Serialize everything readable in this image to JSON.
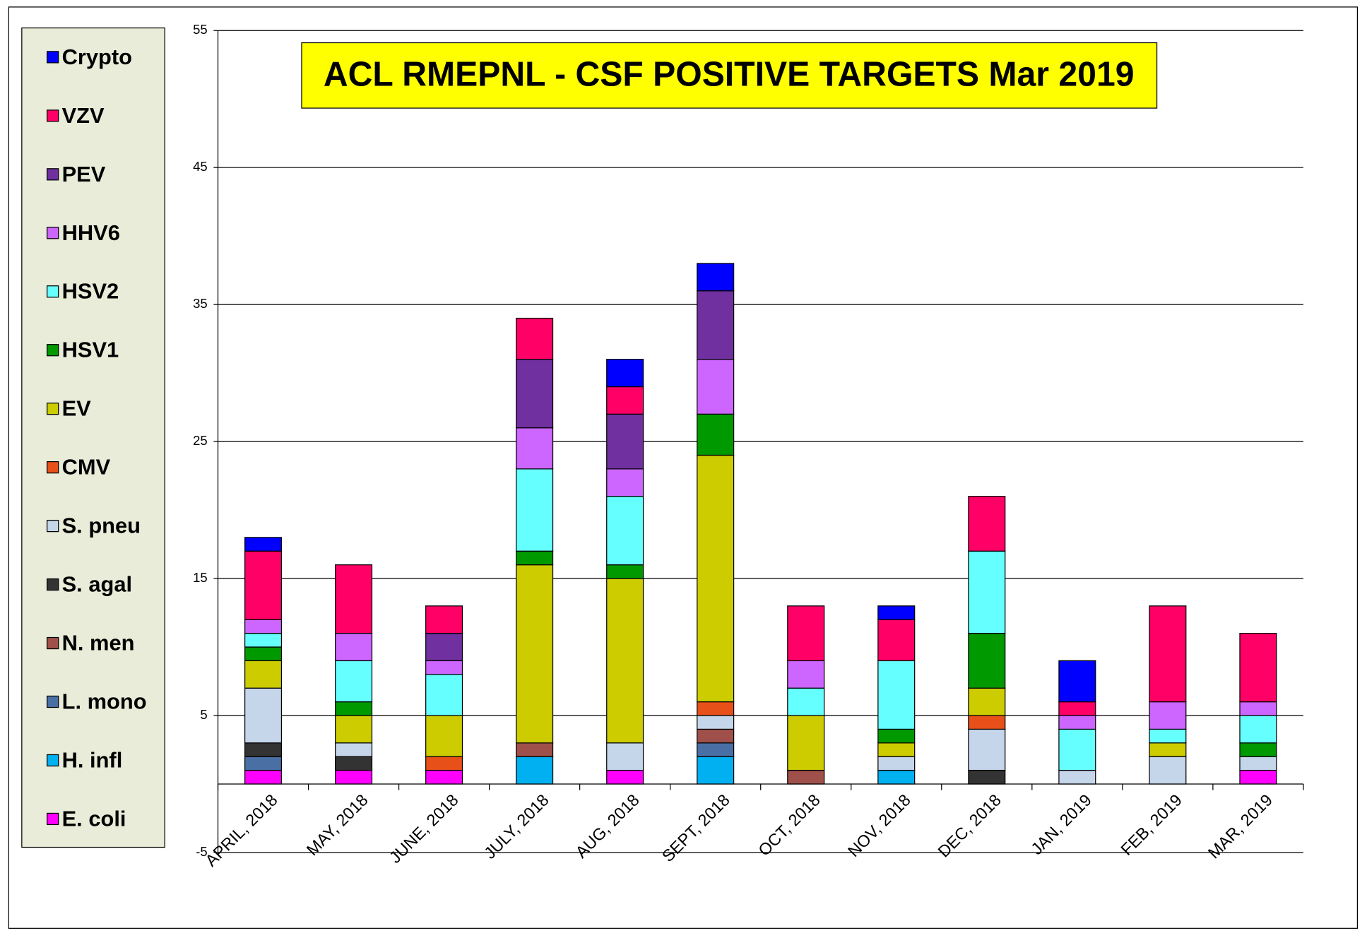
{
  "chart_data": {
    "type": "stacked_bar",
    "title": "ACL RMEPNL - CSF POSITIVE TARGETS Mar 2019",
    "categories": [
      "APRIL, 2018",
      "MAY, 2018",
      "JUNE, 2018",
      "JULY, 2018",
      "AUG, 2018",
      "SEPT, 2018",
      "OCT, 2018",
      "NOV, 2018",
      "DEC, 2018",
      "JAN, 2019",
      "FEB, 2019",
      "MAR, 2019"
    ],
    "series": [
      {
        "name": "E. coli",
        "color": "#ff00ff",
        "values": [
          1,
          1,
          1,
          0,
          1,
          0,
          0,
          0,
          0,
          0,
          0,
          1
        ]
      },
      {
        "name": "H. infl",
        "color": "#00b0f0",
        "values": [
          0,
          0,
          0,
          2,
          0,
          2,
          0,
          1,
          0,
          0,
          0,
          0
        ]
      },
      {
        "name": "L. mono",
        "color": "#4a6fa5",
        "values": [
          1,
          0,
          0,
          0,
          0,
          1,
          0,
          0,
          0,
          0,
          0,
          0
        ]
      },
      {
        "name": "N. men",
        "color": "#a0504a",
        "values": [
          0,
          0,
          0,
          1,
          0,
          1,
          1,
          0,
          0,
          0,
          0,
          0
        ]
      },
      {
        "name": "S. agal",
        "color": "#333333",
        "values": [
          1,
          1,
          0,
          0,
          0,
          0,
          0,
          0,
          1,
          0,
          0,
          0
        ]
      },
      {
        "name": "S. pneu",
        "color": "#c5d5ea",
        "values": [
          4,
          1,
          0,
          0,
          2,
          1,
          0,
          1,
          3,
          1,
          2,
          1
        ]
      },
      {
        "name": "CMV",
        "color": "#e8501a",
        "values": [
          0,
          0,
          1,
          0,
          0,
          1,
          0,
          0,
          1,
          0,
          0,
          0
        ]
      },
      {
        "name": "EV",
        "color": "#cccc00",
        "values": [
          2,
          2,
          3,
          13,
          12,
          18,
          4,
          1,
          2,
          0,
          1,
          0
        ]
      },
      {
        "name": "HSV1",
        "color": "#009900",
        "values": [
          1,
          1,
          0,
          1,
          1,
          3,
          0,
          1,
          4,
          0,
          0,
          1
        ]
      },
      {
        "name": "HSV2",
        "color": "#66ffff",
        "values": [
          1,
          3,
          3,
          6,
          5,
          0,
          2,
          5,
          6,
          3,
          1,
          2
        ]
      },
      {
        "name": "HHV6",
        "color": "#cc66ff",
        "values": [
          1,
          2,
          1,
          3,
          2,
          4,
          2,
          0,
          0,
          1,
          2,
          1
        ]
      },
      {
        "name": "PEV",
        "color": "#7030a0",
        "values": [
          0,
          0,
          2,
          5,
          4,
          5,
          0,
          0,
          0,
          0,
          0,
          0
        ]
      },
      {
        "name": "VZV",
        "color": "#ff0066",
        "values": [
          5,
          5,
          2,
          3,
          2,
          0,
          4,
          3,
          4,
          1,
          7,
          5
        ]
      },
      {
        "name": "Crypto",
        "color": "#0000ff",
        "values": [
          1,
          0,
          0,
          0,
          2,
          2,
          0,
          1,
          0,
          3,
          0,
          0
        ]
      }
    ],
    "ylim": [
      -5,
      55
    ],
    "yticks": [
      -5,
      5,
      15,
      25,
      35,
      45,
      55
    ],
    "grid": true,
    "legend": "left"
  }
}
